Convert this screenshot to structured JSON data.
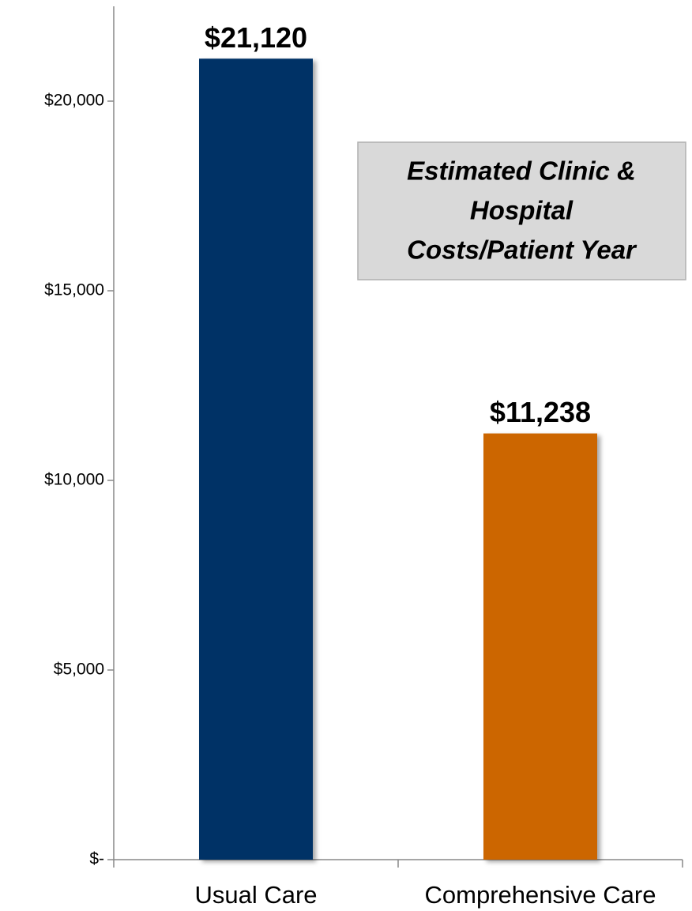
{
  "chart_data": {
    "type": "bar",
    "categories": [
      "Usual Care",
      "Comprehensive Care"
    ],
    "series": [
      {
        "colors": [
          "#003366",
          "#cc6600"
        ],
        "values": [
          21120,
          11238
        ],
        "value_labels": [
          "$21,120",
          "$11,238"
        ]
      }
    ],
    "ylim": [
      0,
      22500
    ],
    "yticks": [
      {
        "value": 0,
        "label": "$-"
      },
      {
        "value": 5000,
        "label": "$5,000"
      },
      {
        "value": 10000,
        "label": "$10,000"
      },
      {
        "value": 15000,
        "label": "$15,000"
      },
      {
        "value": 20000,
        "label": "$20,000"
      }
    ],
    "grid": false,
    "annotation": [
      "Estimated Clinic &",
      "Hospital",
      "Costs/Patient Year"
    ]
  }
}
